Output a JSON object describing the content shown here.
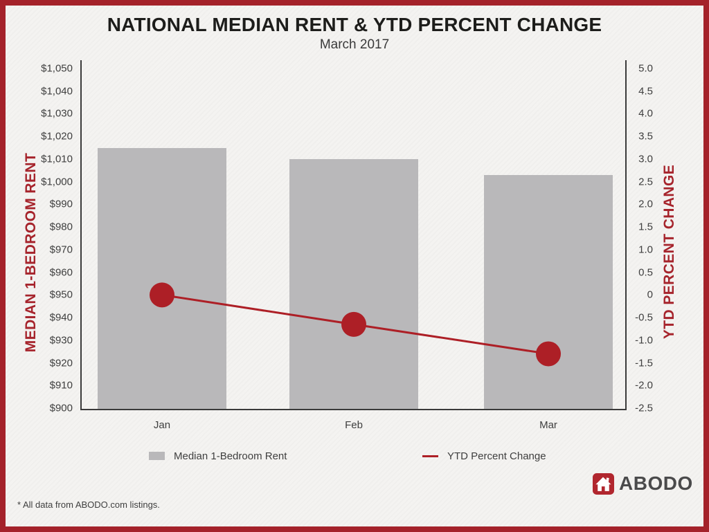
{
  "header": {
    "title": "NATIONAL MEDIAN RENT & YTD PERCENT CHANGE",
    "subtitle": "March 2017"
  },
  "chart_data": {
    "type": "combo-bar-line",
    "categories": [
      "Jan",
      "Feb",
      "Mar"
    ],
    "series": [
      {
        "name": "Median 1-Bedroom Rent",
        "type": "bar",
        "axis": "left",
        "color": "#b9b8ba",
        "values": [
          1015,
          1010,
          1003
        ]
      },
      {
        "name": "YTD Percent Change",
        "type": "line",
        "axis": "right",
        "color": "#ad1f26",
        "values": [
          0,
          -0.65,
          -1.3
        ]
      }
    ],
    "left_axis": {
      "title": "MEDIAN 1-BEDROOM RENT",
      "min": 900,
      "max": 1050,
      "step": 10,
      "ticks": [
        "$1,050",
        "$1,040",
        "$1,030",
        "$1,020",
        "$1,010",
        "$1,000",
        "$990",
        "$980",
        "$970",
        "$960",
        "$950",
        "$940",
        "$930",
        "$920",
        "$910",
        "$900"
      ]
    },
    "right_axis": {
      "title": "YTD PERCENT CHANGE",
      "min": -2.5,
      "max": 5.0,
      "step": 0.5,
      "ticks": [
        "5.0",
        "4.5",
        "4.0",
        "3.5",
        "3.0",
        "2.5",
        "2.0",
        "1.5",
        "1.0",
        "0.5",
        "0",
        "-0.5",
        "-1.0",
        "-1.5",
        "-2.0",
        "-2.5"
      ]
    },
    "grid": false,
    "legend_position": "bottom"
  },
  "legend": {
    "items": [
      {
        "label": "Median 1-Bedroom Rent",
        "swatch": "bar",
        "color": "#b9b8ba"
      },
      {
        "label": "YTD Percent Change",
        "swatch": "line",
        "color": "#ad1f26"
      }
    ]
  },
  "footnote": "* All data from ABODO.com listings.",
  "logo": {
    "text": "ABODO",
    "icon": "abodo-house-icon",
    "icon_bg": "#b1262e",
    "text_color": "#4a4a4b"
  },
  "colors": {
    "frame_border": "#a4222a",
    "background": "#f4f3f1",
    "bar": "#b9b8ba",
    "line": "#ad1f26",
    "axis_title": "#a6242c",
    "axis_line": "#3a3a3a",
    "title_text": "#1d1d1b",
    "tick_text": "#3e3e3e",
    "logo_text": "#4a4a4b"
  }
}
